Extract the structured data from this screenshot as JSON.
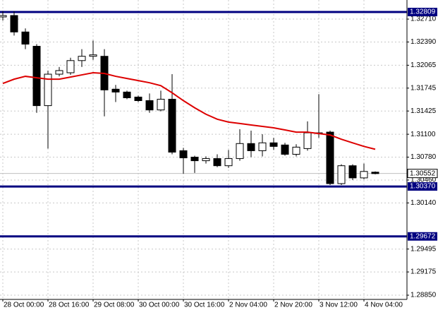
{
  "chart_data": {
    "type": "candlestick",
    "x": [
      "28 Oct 00:00",
      null,
      null,
      null,
      "28 Oct 16:00",
      null,
      null,
      null,
      "29 Oct 08:00",
      null,
      null,
      null,
      "30 Oct 00:00",
      null,
      null,
      null,
      "30 Oct 16:00",
      null,
      null,
      null,
      "2 Nov 04:00",
      null,
      null,
      null,
      "2 Nov 20:00",
      null,
      null,
      null,
      "3 Nov 12:00",
      null,
      null,
      null,
      "4 Nov 04:00",
      null
    ],
    "open": [
      1.3274,
      1.3276,
      1.3253,
      1.3233,
      1.315,
      1.3194,
      1.3196,
      1.3213,
      1.3219,
      1.3219,
      1.3173,
      1.3169,
      1.3162,
      1.3157,
      1.3144,
      1.3159,
      1.3087,
      1.3078,
      1.3073,
      1.3076,
      1.3066,
      1.3076,
      1.3097,
      1.3087,
      1.3098,
      1.3095,
      1.3082,
      1.309,
      1.3112,
      1.3113,
      1.3041,
      1.3066,
      1.3049,
      1.3057
    ],
    "high": [
      1.3282,
      1.3282,
      1.3258,
      1.3236,
      1.3199,
      1.3204,
      1.3217,
      1.3229,
      1.3241,
      1.3229,
      1.3179,
      1.3171,
      1.3164,
      1.3167,
      1.3171,
      1.3194,
      1.3091,
      1.308,
      1.3079,
      1.3082,
      1.3088,
      1.3117,
      1.3115,
      1.311,
      1.3105,
      1.3098,
      1.3096,
      1.3128,
      1.3166,
      1.3115,
      1.3068,
      1.3068,
      1.3069,
      1.3058
    ],
    "low": [
      1.3269,
      1.3248,
      1.3229,
      1.314,
      1.309,
      1.3191,
      1.3193,
      1.3204,
      1.3214,
      1.3135,
      1.3155,
      1.3159,
      1.3155,
      1.314,
      1.3142,
      1.3082,
      1.3055,
      1.3056,
      1.3069,
      1.3064,
      1.3063,
      1.3073,
      1.3078,
      1.3079,
      1.3088,
      1.308,
      1.3079,
      1.3087,
      1.3105,
      1.3039,
      1.3039,
      1.3046,
      1.3047,
      1.3054
    ],
    "close": [
      1.3276,
      1.3253,
      1.3236,
      1.315,
      1.3194,
      1.3199,
      1.3213,
      1.3219,
      1.3221,
      1.3172,
      1.3169,
      1.3161,
      1.3157,
      1.3144,
      1.3159,
      1.3085,
      1.3077,
      1.3073,
      1.3076,
      1.3066,
      1.3076,
      1.3097,
      1.3087,
      1.3098,
      1.3093,
      1.3082,
      1.3092,
      1.3112,
      1.3111,
      1.3041,
      1.3066,
      1.3049,
      1.3058,
      1.3055
    ],
    "up_color": "#ffffff",
    "down_color": "#000000",
    "edge_color": "#000000",
    "ma": {
      "color": "#dd0000",
      "values": [
        1.3181,
        1.3187,
        1.3191,
        1.3189,
        1.3187,
        1.3187,
        1.319,
        1.3193,
        1.3196,
        1.3195,
        1.3191,
        1.3188,
        1.3185,
        1.3182,
        1.3178,
        1.3168,
        1.3157,
        1.3147,
        1.3138,
        1.3131,
        1.3127,
        1.3125,
        1.3123,
        1.3121,
        1.3119,
        1.3116,
        1.3113,
        1.3113,
        1.3111,
        1.3109,
        1.3103,
        1.3098,
        1.3093,
        1.3089
      ]
    },
    "ylim": [
      1.28791,
      1.32977
    ],
    "yticks": [
      {
        "value": 1.3271,
        "label": "1.32710"
      },
      {
        "value": 1.3239,
        "label": "1.32390"
      },
      {
        "value": 1.32065,
        "label": "1.32065"
      },
      {
        "value": 1.31745,
        "label": "1.31745"
      },
      {
        "value": 1.31425,
        "label": "1.31425"
      },
      {
        "value": 1.311,
        "label": "1.31100"
      },
      {
        "value": 1.3078,
        "label": "1.30780"
      },
      {
        "value": 1.3046,
        "label": "1.30460"
      },
      {
        "value": 1.3014,
        "label": "1.30140"
      },
      {
        "value": 1.29495,
        "label": "1.29495"
      },
      {
        "value": 1.29175,
        "label": "1.29175"
      },
      {
        "value": 1.2885,
        "label": "1.28850"
      }
    ],
    "grid": true,
    "levels": [
      {
        "value": 1.32809,
        "label": "1.32809"
      },
      {
        "value": 1.3037,
        "label": "1.30370"
      },
      {
        "value": 1.29672,
        "label": "1.29672"
      }
    ],
    "level_color": "#000080",
    "current_price": {
      "value": 1.30552,
      "label": "1.30552"
    }
  }
}
